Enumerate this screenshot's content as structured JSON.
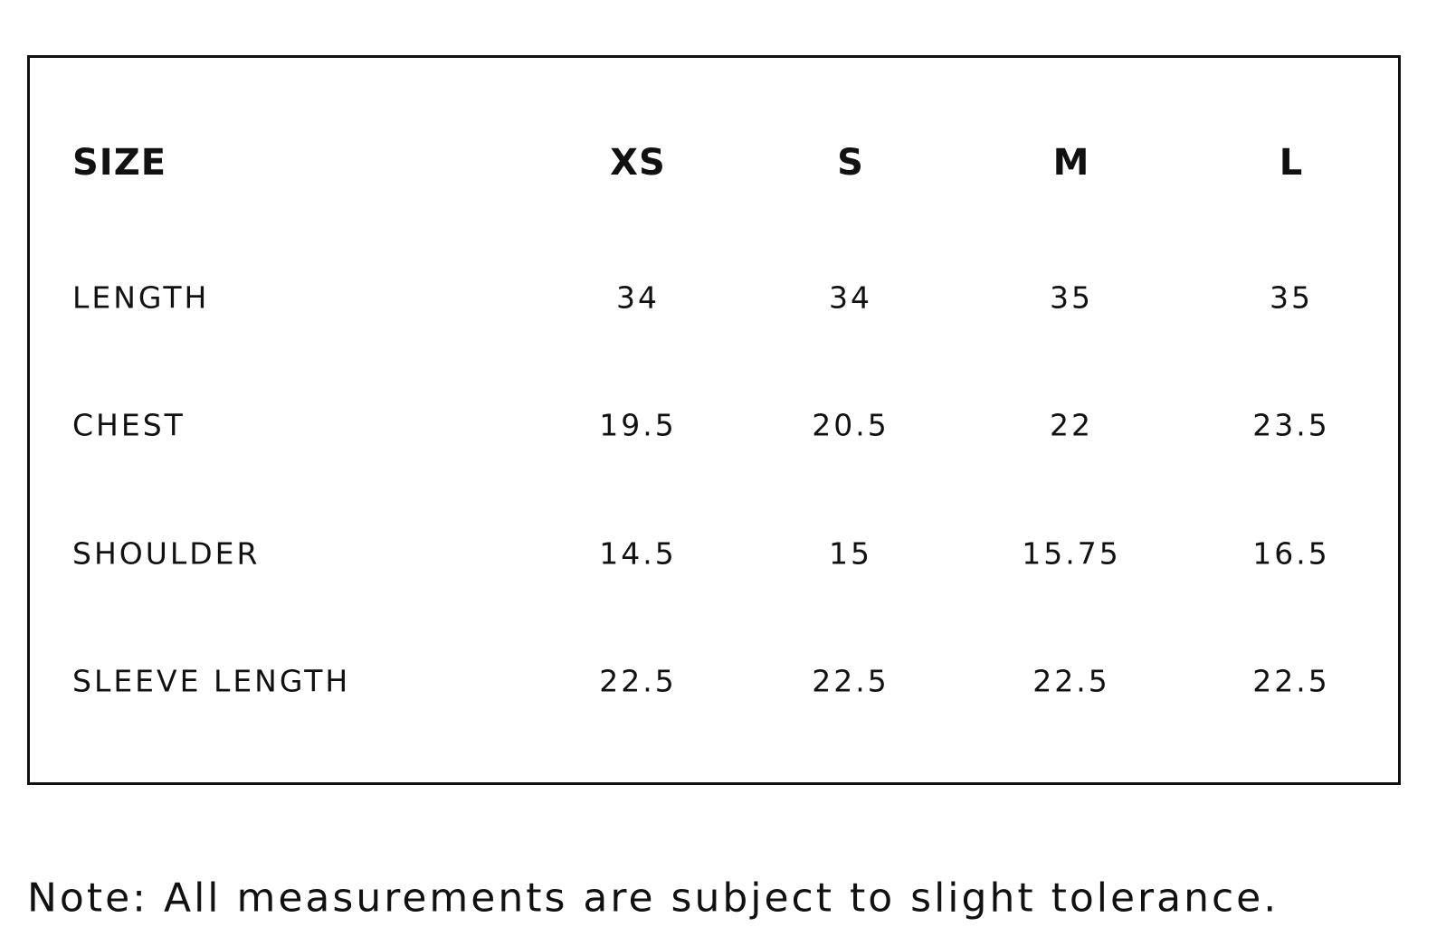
{
  "table": {
    "header": [
      "SIZE",
      "XS",
      "S",
      "M",
      "L"
    ],
    "rows": [
      [
        "LENGTH",
        "34",
        "34",
        "35",
        "35"
      ],
      [
        "CHEST",
        "19.5",
        "20.5",
        "22",
        "23.5"
      ],
      [
        "SHOULDER",
        "14.5",
        "15",
        "15.75",
        "16.5"
      ],
      [
        "SLEEVE LENGTH",
        "22.5",
        "22.5",
        "22.5",
        "22.5"
      ]
    ]
  },
  "note": "Note: All measurements are subject to slight tolerance."
}
